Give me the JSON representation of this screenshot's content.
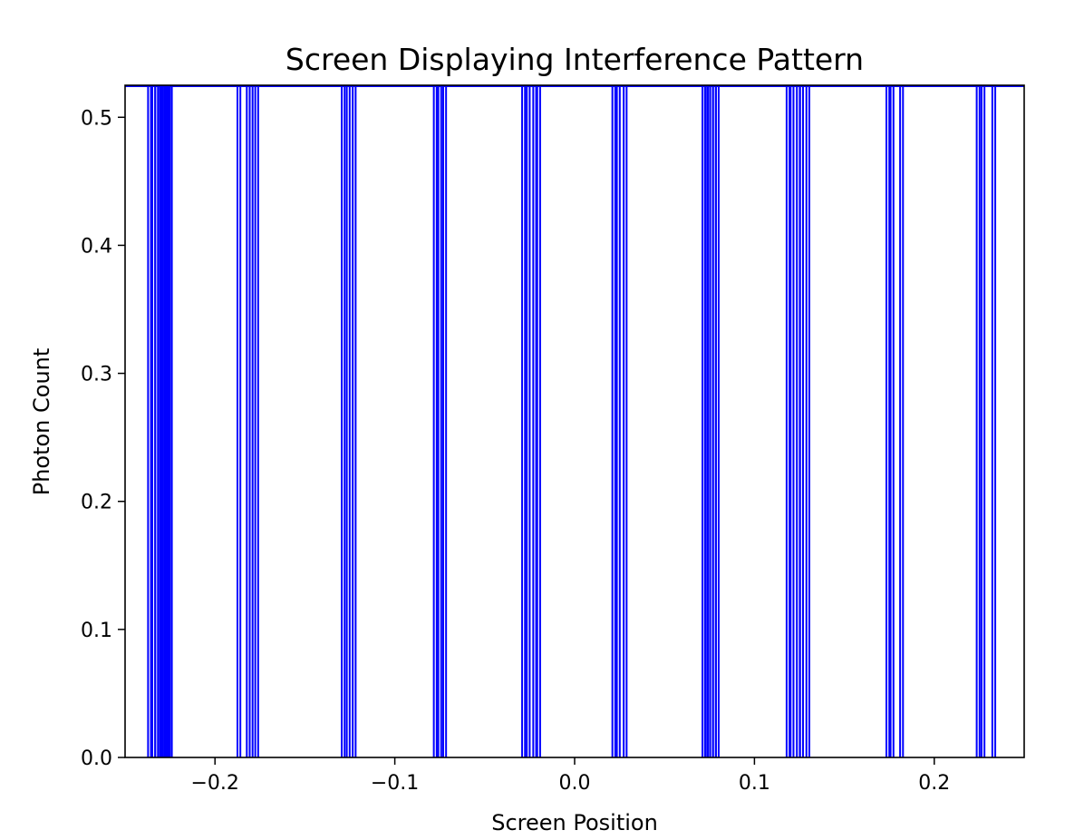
{
  "chart_data": {
    "type": "bar",
    "title": "Screen Displaying Interference Pattern",
    "xlabel": "Screen Position",
    "ylabel": "Photon Count",
    "xlim": [
      -0.25,
      0.25
    ],
    "ylim": [
      0.0,
      0.525
    ],
    "xticks": [
      -0.2,
      -0.1,
      0.0,
      0.1,
      0.2
    ],
    "xtick_labels": [
      "−0.2",
      "−0.1",
      "0.0",
      "0.1",
      "0.2"
    ],
    "yticks": [
      0.0,
      0.1,
      0.2,
      0.3,
      0.4,
      0.5
    ],
    "ytick_labels": [
      "0.0",
      "0.1",
      "0.2",
      "0.3",
      "0.4",
      "0.5"
    ],
    "grid": false,
    "legend": null,
    "bar_color": "#0000ff",
    "bar_height": 0.5,
    "x": [
      -0.2364,
      -0.2341,
      -0.2324,
      -0.2309,
      -0.2297,
      -0.2283,
      -0.2272,
      -0.2259,
      -0.2248,
      -0.1867,
      -0.1815,
      -0.1799,
      -0.1768,
      -0.1287,
      -0.1259,
      -0.1226,
      -0.0775,
      -0.075,
      -0.0723,
      -0.0284,
      -0.0258,
      -0.0222,
      -0.02,
      0.0218,
      0.0243,
      0.0281,
      0.0719,
      0.0733,
      0.0746,
      0.0761,
      0.0778,
      0.0793,
      0.1187,
      0.1209,
      0.1244,
      0.1262,
      0.1297,
      0.1742,
      0.1765,
      0.1818,
      0.2244,
      0.2271,
      0.2331
    ]
  }
}
